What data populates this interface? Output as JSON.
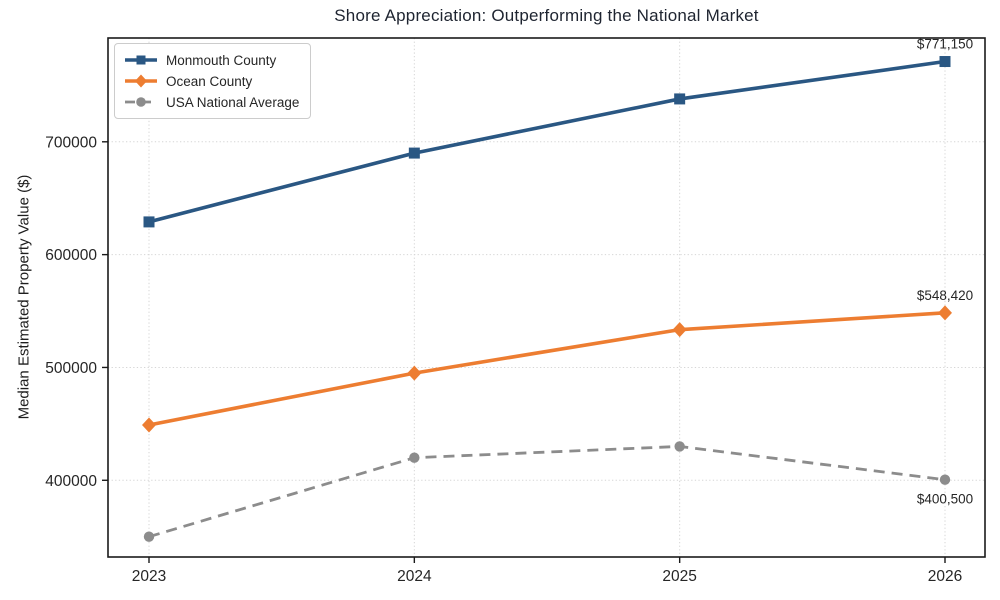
{
  "chart_data": {
    "type": "line",
    "title": "Shore Appreciation: Outperforming the National Market",
    "xlabel": "",
    "ylabel": "Median Estimated Property Value ($)",
    "x": [
      2023,
      2024,
      2025,
      2026
    ],
    "x_tick_labels": [
      "2023",
      "2024",
      "2025",
      "2026"
    ],
    "y_ticks": [
      400000,
      500000,
      600000,
      700000
    ],
    "y_tick_labels": [
      "400000",
      "500000",
      "600000",
      "700000"
    ],
    "ylim": [
      332000,
      792000
    ],
    "grid": "dotted both axes",
    "legend_position": "upper-left",
    "series": [
      {
        "name": "Monmouth County",
        "values": [
          629000,
          690000,
          738000,
          771150
        ],
        "color": "#2A5783",
        "marker": "square",
        "line_style": "solid"
      },
      {
        "name": "Ocean County",
        "values": [
          449000,
          495000,
          533500,
          548420
        ],
        "color": "#ED7D31",
        "marker": "diamond",
        "line_style": "solid"
      },
      {
        "name": "USA National Average",
        "values": [
          350000,
          420000,
          430000,
          400500
        ],
        "color": "#8C8C8C",
        "marker": "circle",
        "line_style": "dashed"
      }
    ],
    "annotations": [
      {
        "text": "$771,150",
        "series": "Monmouth County",
        "x": 2026,
        "placement": "above"
      },
      {
        "text": "$548,420",
        "series": "Ocean County",
        "x": 2026,
        "placement": "above"
      },
      {
        "text": "$400,500",
        "series": "USA National Average",
        "x": 2026,
        "placement": "below"
      }
    ],
    "colors": {
      "axis_spine": "#1a1a1a",
      "grid_line": "#d6d6d6",
      "tick_label": "#262626",
      "annotation_text": "#262626"
    }
  }
}
